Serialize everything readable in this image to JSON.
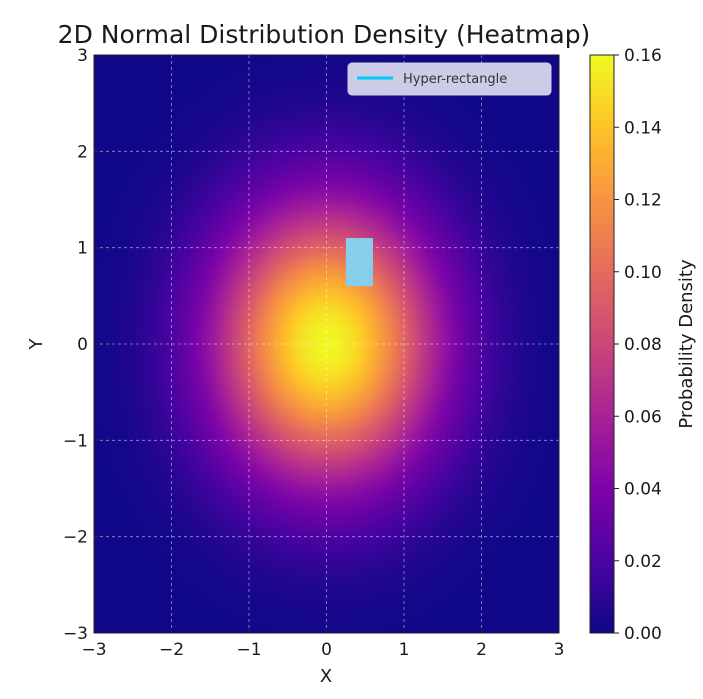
{
  "chart_data": {
    "type": "heatmap",
    "title": "2D Normal Distribution Density (Heatmap)",
    "xlabel": "X",
    "ylabel": "Y",
    "xlim": [
      -3,
      3
    ],
    "ylim": [
      -3,
      3
    ],
    "x_ticks": [
      -3,
      -2,
      -1,
      0,
      1,
      2,
      3
    ],
    "y_ticks": [
      -3,
      -2,
      -1,
      0,
      1,
      2,
      3
    ],
    "x_tick_labels": [
      "−3",
      "−2",
      "−1",
      "0",
      "1",
      "2",
      "3"
    ],
    "y_tick_labels": [
      "−3",
      "−2",
      "−1",
      "0",
      "1",
      "2",
      "3"
    ],
    "grid": true,
    "colormap": "plasma",
    "density": {
      "mean": [
        0,
        0
      ],
      "std": [
        1,
        1
      ],
      "peak_value": 0.159
    },
    "colorbar": {
      "label": "Probability Density",
      "range": [
        0,
        0.16
      ],
      "ticks": [
        0.0,
        0.02,
        0.04,
        0.06,
        0.08,
        0.1,
        0.12,
        0.14,
        0.16
      ],
      "tick_labels": [
        "0.00",
        "0.02",
        "0.04",
        "0.06",
        "0.08",
        "0.10",
        "0.12",
        "0.14",
        "0.16"
      ]
    },
    "rectangle": {
      "x_range": [
        0.25,
        0.6
      ],
      "y_range": [
        0.6,
        1.1
      ],
      "color": "#87ceeb"
    },
    "legend": {
      "position": "top-right",
      "entries": [
        {
          "label": "Hyper-rectangle",
          "color": "#00ccff"
        }
      ]
    }
  }
}
